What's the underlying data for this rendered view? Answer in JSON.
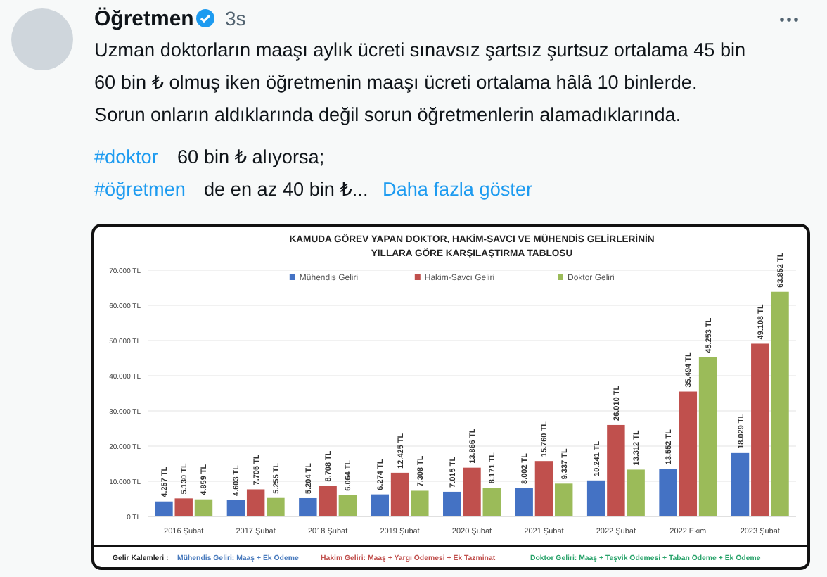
{
  "chart_data": {
    "type": "bar",
    "title": "KAMUDA GÖREV YAPAN DOKTOR, HAKİM-SAVCI VE MÜHENDİS GELİRLERİNİN\nYILLARA GÖRE KARŞILAŞTIRMA TABLOSU",
    "categories": [
      "2016 Şubat",
      "2017 Şubat",
      "2018 Şubat",
      "2019 Şubat",
      "2020 Şubat",
      "2021 Şubat",
      "2022 Şubat",
      "2022 Ekim",
      "2023 Şubat"
    ],
    "series": [
      {
        "name": "Mühendis Geliri",
        "color": "#4472c4",
        "values": [
          4257,
          4603,
          5204,
          6274,
          7015,
          8002,
          10241,
          13552,
          18029
        ],
        "value_labels": [
          "4.257 TL",
          "4.603 TL",
          "5.204 TL",
          "6.274 TL",
          "7.015 TL",
          "8.002 TL",
          "10.241 TL",
          "13.552 TL",
          "18.029 TL"
        ]
      },
      {
        "name": "Hakim-Savcı Geliri",
        "color": "#c0504d",
        "values": [
          5130,
          7705,
          8708,
          12425,
          13866,
          15760,
          26010,
          35494,
          49108
        ],
        "value_labels": [
          "5.130 TL",
          "7.705 TL",
          "8.708 TL",
          "12.425 TL",
          "13.866 TL",
          "15.760 TL",
          "26.010 TL",
          "35.494 TL",
          "49.108 TL"
        ]
      },
      {
        "name": "Doktor Geliri",
        "color": "#9bbb59",
        "values": [
          4859,
          5255,
          6064,
          7308,
          8171,
          9337,
          13312,
          45253,
          63852
        ],
        "value_labels": [
          "4.859 TL",
          "5.255 TL",
          "6.064 TL",
          "7.308 TL",
          "8.171 TL",
          "9.337 TL",
          "13.312 TL",
          "45.253 TL",
          "63.852 TL"
        ]
      }
    ],
    "ylim": [
      0,
      70000
    ],
    "yticks": [
      {
        "value": 0,
        "label": "0 TL"
      },
      {
        "value": 10000,
        "label": "10.000 TL"
      },
      {
        "value": 20000,
        "label": "20.000 TL"
      },
      {
        "value": 30000,
        "label": "30.000 TL"
      },
      {
        "value": 40000,
        "label": "40.000 TL"
      },
      {
        "value": 50000,
        "label": "50.000 TL"
      },
      {
        "value": 60000,
        "label": "60.000 TL"
      },
      {
        "value": 70000,
        "label": "70.000 TL"
      }
    ],
    "grid": "y",
    "legend": "top",
    "annotations": [
      "Öğretmen",
      "3s",
      "Uzman doktorların maaşı aylık ücreti sınavsız  şartsız şurtsuz ortalama 45 bin",
      "60 bin ₺ olmuş iken öğretmenin maaşı ücreti ortalama hâlâ 10 binlerde.",
      "Sorun onların aldıklarında değil sorun öğretmenlerin alamadıklarında.",
      "#doktor",
      "60 bin ₺ alıyorsa;",
      "#öğretmen",
      "de en az 40 bin ₺...",
      "Daha fazla göster",
      "Gelir Kalemleri :",
      "Mühendis Geliri: Maaş + Ek Ödeme",
      "Hakim Geliri: Maaş + Yargı Ödemesi + Ek Tazminat",
      "Doktor Geliri: Maaş + Teşvik Ödemesi + Taban Ödeme + Ek Ödeme"
    ]
  }
}
